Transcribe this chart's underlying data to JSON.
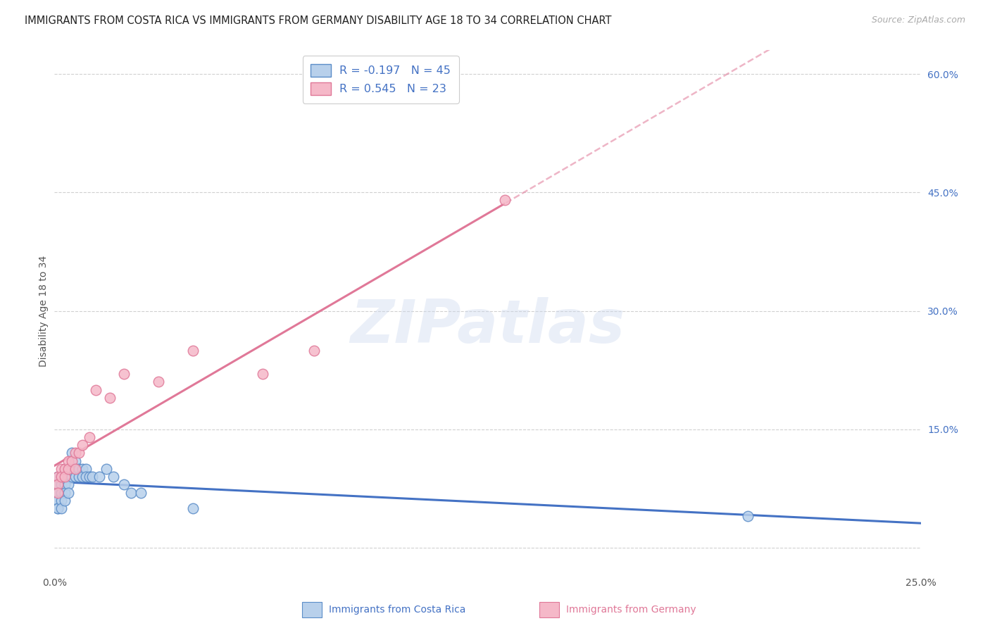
{
  "title": "IMMIGRANTS FROM COSTA RICA VS IMMIGRANTS FROM GERMANY DISABILITY AGE 18 TO 34 CORRELATION CHART",
  "source": "Source: ZipAtlas.com",
  "ylabel": "Disability Age 18 to 34",
  "xmin": 0.0,
  "xmax": 0.25,
  "ymin": -0.03,
  "ymax": 0.63,
  "xtick_positions": [
    0.0,
    0.05,
    0.1,
    0.15,
    0.2,
    0.25
  ],
  "xticklabels": [
    "0.0%",
    "",
    "",
    "",
    "",
    "25.0%"
  ],
  "ytick_right_positions": [
    0.0,
    0.15,
    0.3,
    0.45,
    0.6
  ],
  "yticklabels_right": [
    "",
    "15.0%",
    "30.0%",
    "45.0%",
    "60.0%"
  ],
  "grid_color": "#d0d0d0",
  "bg_color": "#ffffff",
  "watermark_text": "ZIPatlas",
  "R1": "-0.197",
  "N1": "45",
  "R2": "0.545",
  "N2": "23",
  "color_cr_face": "#b8d0eb",
  "color_cr_edge": "#5b8dc8",
  "color_de_face": "#f5b8c8",
  "color_de_edge": "#e07898",
  "color_cr_line": "#4472c4",
  "color_de_line": "#e07898",
  "legend_label1": "Immigrants from Costa Rica",
  "legend_label2": "Immigrants from Germany",
  "costa_rica_x": [
    0.001,
    0.001,
    0.001,
    0.001,
    0.001,
    0.001,
    0.001,
    0.001,
    0.002,
    0.002,
    0.002,
    0.002,
    0.002,
    0.002,
    0.003,
    0.003,
    0.003,
    0.003,
    0.003,
    0.004,
    0.004,
    0.004,
    0.004,
    0.005,
    0.005,
    0.005,
    0.006,
    0.006,
    0.006,
    0.007,
    0.007,
    0.008,
    0.008,
    0.009,
    0.009,
    0.01,
    0.011,
    0.013,
    0.015,
    0.017,
    0.02,
    0.022,
    0.025,
    0.04,
    0.2
  ],
  "costa_rica_y": [
    0.09,
    0.08,
    0.07,
    0.07,
    0.06,
    0.06,
    0.05,
    0.05,
    0.09,
    0.09,
    0.08,
    0.07,
    0.06,
    0.05,
    0.1,
    0.09,
    0.08,
    0.07,
    0.06,
    0.1,
    0.09,
    0.08,
    0.07,
    0.12,
    0.1,
    0.09,
    0.11,
    0.1,
    0.09,
    0.1,
    0.09,
    0.1,
    0.09,
    0.1,
    0.09,
    0.09,
    0.09,
    0.09,
    0.1,
    0.09,
    0.08,
    0.07,
    0.07,
    0.05,
    0.04
  ],
  "germany_x": [
    0.001,
    0.001,
    0.001,
    0.002,
    0.002,
    0.003,
    0.003,
    0.004,
    0.004,
    0.005,
    0.006,
    0.006,
    0.007,
    0.008,
    0.01,
    0.012,
    0.016,
    0.02,
    0.03,
    0.04,
    0.06,
    0.075,
    0.13
  ],
  "germany_y": [
    0.09,
    0.08,
    0.07,
    0.1,
    0.09,
    0.1,
    0.09,
    0.11,
    0.1,
    0.11,
    0.12,
    0.1,
    0.12,
    0.13,
    0.14,
    0.2,
    0.19,
    0.22,
    0.21,
    0.25,
    0.22,
    0.25,
    0.44
  ]
}
